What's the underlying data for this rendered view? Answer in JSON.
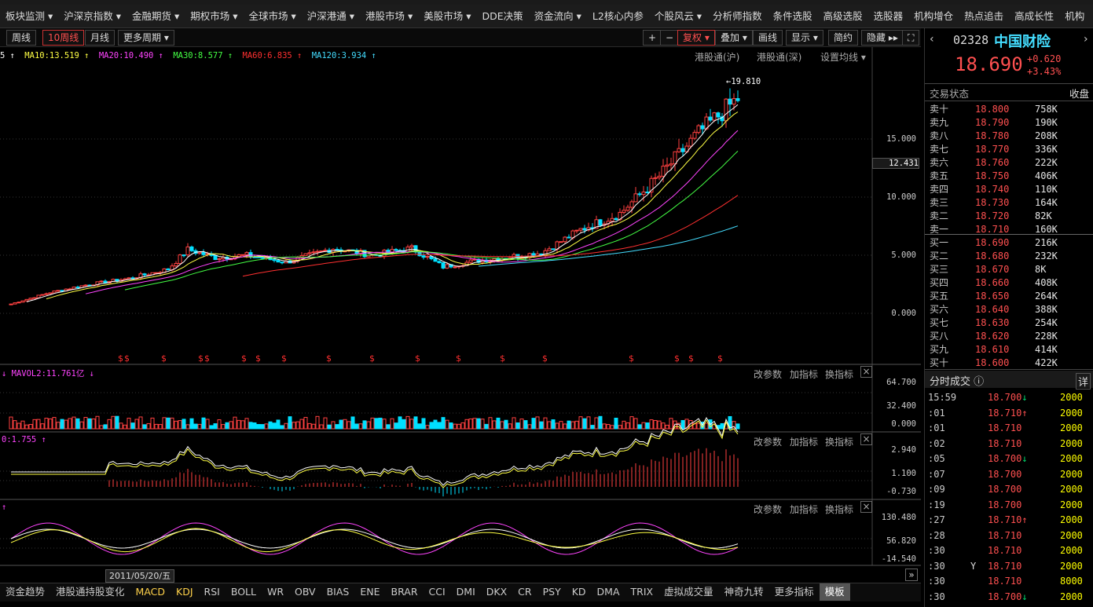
{
  "menu": [
    "板块监测 ▾",
    "沪深京指数 ▾",
    "金融期货 ▾",
    "期权市场 ▾",
    "全球市场 ▾",
    "沪深港通 ▾",
    "港股市场 ▾",
    "美股市场 ▾",
    "DDE决策",
    "资金流向 ▾",
    "L2核心内参",
    "个股风云 ▾",
    "分析师指数",
    "条件选股",
    "高级选股",
    "选股器",
    "机构增仓",
    "热点追击",
    "高成长性",
    "机构"
  ],
  "toolbar": {
    "periods": [
      "周线",
      "10周线",
      "月线",
      "更多周期 ▾"
    ],
    "right": [
      "复权 ▾",
      "叠加 ▾",
      "画线",
      "显示 ▾",
      "简约",
      "隐藏 ▸▸"
    ],
    "plus": "+",
    "minus": "−",
    "fullscreen": "⛶"
  },
  "ma": {
    "ma5": "5 ↑",
    "ma10": "MA10:13.519 ↑",
    "ma20": "MA20:10.490 ↑",
    "ma30": "MA30:8.577 ↑",
    "ma60": "MA60:6.835 ↑",
    "ma120": "MA120:3.934 ↑"
  },
  "panel_links": {
    "hk_sh": "港股通(沪)",
    "hk_sz": "港股通(深)",
    "set_ma": "设置均线 ▾"
  },
  "price_axis": {
    "y15": "15.000",
    "y12": "12.431",
    "y10": "10.000",
    "y5": "5.000",
    "y0": "0.000",
    "high": "19.810"
  },
  "vol_panel": {
    "label": "↓ MAVOL2:11.761亿 ↓",
    "y1": "64.700",
    "y2": "32.400",
    "y3": "0.000"
  },
  "macd_panel": {
    "label": "0:1.755 ↑",
    "y1": "2.940",
    "y2": "1.100",
    "y3": "-0.730"
  },
  "kdj_panel": {
    "label": "↑",
    "y1": "130.480",
    "y2": "56.820",
    "y3": "-14.540"
  },
  "panel_tools": {
    "change": "改参数",
    "add": "加指标",
    "swap": "换指标"
  },
  "date_label": "2011/05/20/五",
  "bottom_tabs": [
    "资金趋势",
    "港股通持股变化",
    "MACD",
    "KDJ",
    "RSI",
    "BOLL",
    "WR",
    "OBV",
    "BIAS",
    "ENE",
    "BRAR",
    "CCI",
    "DMI",
    "DKX",
    "CR",
    "PSY",
    "KD",
    "DMA",
    "TRIX",
    "虚拟成交量",
    "神奇九转",
    "更多指标",
    "模板"
  ],
  "stock": {
    "code": "02328",
    "name": "中国财险",
    "price": "18.690",
    "change": "+0.620",
    "pct": "+3.43%",
    "status_label": "交易状态",
    "status": "收盘"
  },
  "asks": [
    {
      "l": "卖十",
      "p": "18.800",
      "v": "758K"
    },
    {
      "l": "卖九",
      "p": "18.790",
      "v": "190K"
    },
    {
      "l": "卖八",
      "p": "18.780",
      "v": "208K"
    },
    {
      "l": "卖七",
      "p": "18.770",
      "v": "336K"
    },
    {
      "l": "卖六",
      "p": "18.760",
      "v": "222K"
    },
    {
      "l": "卖五",
      "p": "18.750",
      "v": "406K"
    },
    {
      "l": "卖四",
      "p": "18.740",
      "v": "110K"
    },
    {
      "l": "卖三",
      "p": "18.730",
      "v": "164K"
    },
    {
      "l": "卖二",
      "p": "18.720",
      "v": "82K"
    },
    {
      "l": "卖一",
      "p": "18.710",
      "v": "160K"
    }
  ],
  "bids": [
    {
      "l": "买一",
      "p": "18.690",
      "v": "216K"
    },
    {
      "l": "买二",
      "p": "18.680",
      "v": "232K"
    },
    {
      "l": "买三",
      "p": "18.670",
      "v": "8K"
    },
    {
      "l": "买四",
      "p": "18.660",
      "v": "408K"
    },
    {
      "l": "买五",
      "p": "18.650",
      "v": "264K"
    },
    {
      "l": "买六",
      "p": "18.640",
      "v": "388K"
    },
    {
      "l": "买七",
      "p": "18.630",
      "v": "254K"
    },
    {
      "l": "买八",
      "p": "18.620",
      "v": "228K"
    },
    {
      "l": "买九",
      "p": "18.610",
      "v": "414K"
    },
    {
      "l": "买十",
      "p": "18.600",
      "v": "422K"
    }
  ],
  "ticks_header": {
    "title": "分时成交 ⓘ",
    "detail": "详"
  },
  "ticks": [
    {
      "t": "15:59",
      "p": "18.700",
      "a": "↓",
      "v": "2000"
    },
    {
      "t": ":01",
      "p": "18.710",
      "a": "↑",
      "v": "2000"
    },
    {
      "t": ":01",
      "p": "18.710",
      "a": "",
      "v": "2000"
    },
    {
      "t": ":02",
      "p": "18.710",
      "a": "",
      "v": "2000"
    },
    {
      "t": ":05",
      "p": "18.700",
      "a": "↓",
      "v": "2000"
    },
    {
      "t": ":07",
      "p": "18.700",
      "a": "",
      "v": "2000"
    },
    {
      "t": ":09",
      "p": "18.700",
      "a": "",
      "v": "2000"
    },
    {
      "t": ":19",
      "p": "18.700",
      "a": "",
      "v": "2000"
    },
    {
      "t": ":27",
      "p": "18.710",
      "a": "↑",
      "v": "2000"
    },
    {
      "t": ":28",
      "p": "18.710",
      "a": "",
      "v": "2000"
    },
    {
      "t": ":30",
      "p": "18.710",
      "a": "",
      "v": "2000"
    },
    {
      "t": ":30",
      "p": "18.710",
      "a": "",
      "v": "2000",
      "y": "Y"
    },
    {
      "t": ":30",
      "p": "18.710",
      "a": "",
      "v": "8000"
    },
    {
      "t": ":30",
      "p": "18.700",
      "a": "↓",
      "v": "2000"
    }
  ],
  "s_marks": "$"
}
